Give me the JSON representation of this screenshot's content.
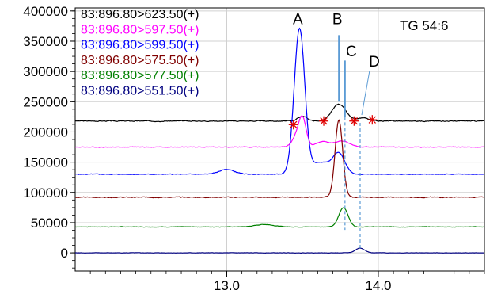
{
  "chart_data": {
    "type": "line",
    "title": "TG 54:6",
    "xlabel": "",
    "ylabel": "",
    "xlim": [
      12.0,
      14.7
    ],
    "ylim": [
      -30000,
      405000
    ],
    "grid": true,
    "legend_position": "top-left",
    "y_ticks": [
      {
        "value": 0,
        "label": "0"
      },
      {
        "value": 50000,
        "label": "50000"
      },
      {
        "value": 100000,
        "label": "100000"
      },
      {
        "value": 150000,
        "label": "150000"
      },
      {
        "value": 200000,
        "label": "200000"
      },
      {
        "value": 250000,
        "label": "250000"
      },
      {
        "value": 300000,
        "label": "300000"
      },
      {
        "value": 350000,
        "label": "350000"
      },
      {
        "value": 400000,
        "label": "400000"
      }
    ],
    "x_ticks": [
      {
        "value": 13.0,
        "label": "13.0"
      },
      {
        "value": 14.0,
        "label": "14.0"
      }
    ],
    "series": [
      {
        "name": "83:896.80>623.50(+)",
        "color": "#000000",
        "baseline": 218000,
        "noise": 1500,
        "peaks": [
          {
            "rt": 13.5,
            "height": 8000,
            "width": 0.03
          },
          {
            "rt": 13.74,
            "height": 28000,
            "width": 0.045
          },
          {
            "rt": 13.9,
            "height": 5000,
            "width": 0.04
          }
        ]
      },
      {
        "name": "83:896.80>597.50(+)",
        "color": "#ff00ff",
        "baseline": 175000,
        "noise": 1200,
        "peaks": [
          {
            "rt": 13.46,
            "height": 15000,
            "width": 0.03
          },
          {
            "rt": 13.5,
            "height": 45000,
            "width": 0.025
          },
          {
            "rt": 13.63,
            "height": 9000,
            "width": 0.04
          },
          {
            "rt": 13.76,
            "height": 10000,
            "width": 0.05
          }
        ]
      },
      {
        "name": "83:896.80>599.50(+)",
        "color": "#0000ff",
        "baseline": 130000,
        "noise": 1200,
        "peaks": [
          {
            "rt": 13.48,
            "height": 240000,
            "width": 0.035
          },
          {
            "rt": 13.62,
            "height": 20000,
            "width": 0.06
          },
          {
            "rt": 13.74,
            "height": 33000,
            "width": 0.04
          },
          {
            "rt": 13.0,
            "height": 8000,
            "width": 0.05
          }
        ]
      },
      {
        "name": "83:896.80>575.50(+)",
        "color": "#800000",
        "baseline": 92000,
        "noise": 1500,
        "peaks": [
          {
            "rt": 13.74,
            "height": 128000,
            "width": 0.025
          }
        ]
      },
      {
        "name": "83:896.80>577.50(+)",
        "color": "#008000",
        "baseline": 43000,
        "noise": 800,
        "peaks": [
          {
            "rt": 13.77,
            "height": 32000,
            "width": 0.03
          },
          {
            "rt": 13.25,
            "height": 4000,
            "width": 0.06
          }
        ]
      },
      {
        "name": "83:896.80>551.50(+)",
        "color": "#000080",
        "baseline": 0,
        "noise": 600,
        "peaks": [
          {
            "rt": 13.88,
            "height": 8000,
            "width": 0.03
          }
        ]
      }
    ],
    "annotations": [
      {
        "label": "A",
        "rt": 13.48,
        "line": false,
        "label_value": 378000
      },
      {
        "label": "B",
        "rt": 13.74,
        "line": true,
        "line_style": "solid",
        "line_color": "#5b9bd5",
        "line_top": 360000,
        "line_bottom": 250000,
        "label_value": 378000
      },
      {
        "label": "C",
        "rt": 13.78,
        "line": true,
        "line_style": "solid",
        "line_color": "#5b9bd5",
        "line_top": 318000,
        "line_bottom": 225000,
        "dashed_down_to": 38000,
        "label_value": 325000
      },
      {
        "label": "D",
        "rt": 13.88,
        "line": false,
        "dashed_from": 215000,
        "dashed_down_to": 8000,
        "label_value": 308000
      }
    ],
    "integration_markers": [
      {
        "rt": 13.44,
        "value": 212000
      },
      {
        "rt": 13.64,
        "value": 218000
      },
      {
        "rt": 13.84,
        "value": 218000
      },
      {
        "rt": 13.96,
        "value": 220000
      }
    ]
  }
}
